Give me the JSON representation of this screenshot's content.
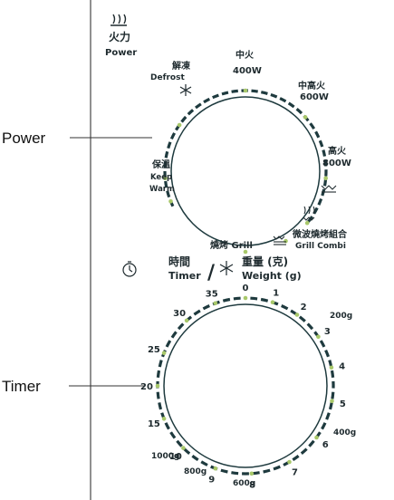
{
  "callouts": {
    "power": "Power",
    "timer": "Timer"
  },
  "power_header": {
    "zh": "火力",
    "en": "Power",
    "icon": "heat-waves-icon"
  },
  "power_dial": {
    "labels": {
      "defrost_zh": "解凍",
      "defrost_en": "Defrost",
      "medium_zh": "中火",
      "medium_w": "400W",
      "medium_high_zh": "中高火",
      "medium_high_w": "600W",
      "high_zh": "高火",
      "high_w": "800W",
      "keep_warm_zh": "保溫",
      "keep_warm_en_1": "Keep",
      "keep_warm_en_2": "Warm",
      "grill": "燒烤 Grill",
      "combi_zh": "微波燒烤組合",
      "combi_en": "Grill Combi"
    },
    "icons": [
      "snowflake-icon",
      "grill-icon",
      "grill-combi-icon",
      "grill-icon-small"
    ]
  },
  "timer_header": {
    "time_zh": "時間",
    "time_en": "Timer",
    "sep": "/",
    "weight_zh": "重量 (克)",
    "weight_en": "Weight (g)",
    "icons": [
      "clock-icon",
      "snowflake-icon"
    ]
  },
  "timer_dial": {
    "minutes": [
      "0",
      "1",
      "2",
      "3",
      "4",
      "5",
      "6",
      "7",
      "8",
      "9",
      "10",
      "15",
      "20",
      "25",
      "30",
      "35"
    ],
    "weights": [
      "200g",
      "400g",
      "600g",
      "800g",
      "1000g"
    ]
  },
  "colors": {
    "dial": "#1e3a3e",
    "dot": "#a8c86a",
    "text": "#1e2a2e"
  }
}
